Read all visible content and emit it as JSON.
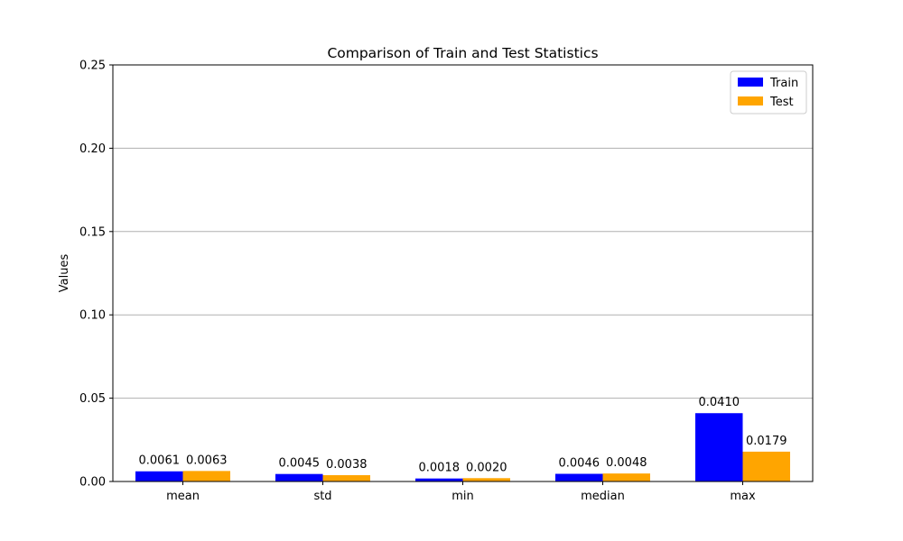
{
  "chart_data": {
    "type": "bar",
    "title": "Comparison of Train and Test Statistics",
    "xlabel": "",
    "ylabel": "Values",
    "categories": [
      "mean",
      "std",
      "min",
      "median",
      "max"
    ],
    "series": [
      {
        "name": "Train",
        "color": "#0000ff",
        "values": [
          0.0061,
          0.0045,
          0.0018,
          0.0046,
          0.041
        ],
        "labels": [
          "0.0061",
          "0.0045",
          "0.0018",
          "0.0046",
          "0.0410"
        ]
      },
      {
        "name": "Test",
        "color": "#ffa500",
        "values": [
          0.0063,
          0.0038,
          0.002,
          0.0048,
          0.0179
        ],
        "labels": [
          "0.0063",
          "0.0038",
          "0.0020",
          "0.0048",
          "0.0179"
        ]
      }
    ],
    "ylim": [
      0,
      0.25
    ],
    "yticks": [
      0.0,
      0.05,
      0.1,
      0.15,
      0.2,
      0.25
    ],
    "ytick_labels": [
      "0.00",
      "0.05",
      "0.10",
      "0.15",
      "0.20",
      "0.25"
    ],
    "grid": "y",
    "legend": "top-right"
  }
}
